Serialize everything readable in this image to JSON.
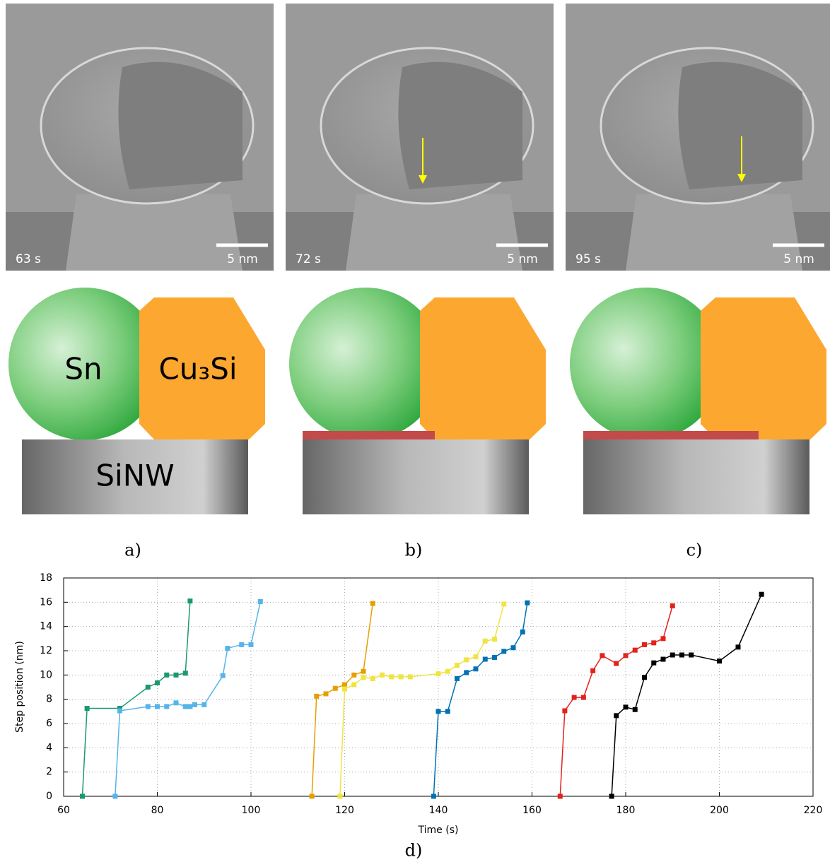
{
  "images": [
    {
      "time": "63 s",
      "scale": "5 nm"
    },
    {
      "time": "72 s",
      "scale": "5 nm"
    },
    {
      "time": "95 s",
      "scale": "5 nm"
    }
  ],
  "schematic": {
    "labels": [
      "Sn",
      "Cu₃Si",
      "SiNW"
    ]
  },
  "panel_labels": [
    "a)",
    "b)",
    "c)",
    "d)"
  ],
  "chart_data": {
    "type": "line",
    "xlabel": "Time (s)",
    "ylabel": "Step position (nm)",
    "xlim": [
      60,
      220
    ],
    "ylim": [
      0,
      18
    ],
    "xticks": [
      60,
      80,
      100,
      120,
      140,
      160,
      180,
      200,
      220
    ],
    "yticks": [
      0,
      2,
      4,
      6,
      8,
      10,
      12,
      14,
      16,
      18
    ],
    "grid": true,
    "series": [
      {
        "color": "#1a9870",
        "x": [
          64,
          65,
          72,
          78,
          80,
          82,
          84,
          86,
          87
        ],
        "values": [
          0,
          7.25,
          7.25,
          9.0,
          9.35,
          10.0,
          10.0,
          10.15,
          16.1
        ]
      },
      {
        "color": "#56b4e9",
        "x": [
          71,
          72,
          78,
          80,
          82,
          84,
          86,
          87,
          88,
          90,
          94,
          95,
          98,
          100,
          102
        ],
        "values": [
          0,
          7.05,
          7.4,
          7.4,
          7.4,
          7.7,
          7.4,
          7.4,
          7.55,
          7.55,
          9.95,
          12.2,
          12.5,
          12.5,
          16.05
        ]
      },
      {
        "color": "#e69f00",
        "x": [
          113,
          114,
          116,
          118,
          120,
          122,
          124,
          126
        ],
        "values": [
          0,
          8.25,
          8.45,
          8.9,
          9.2,
          10.0,
          10.3,
          15.9
        ]
      },
      {
        "color": "#f0e442",
        "x": [
          119,
          120,
          122,
          124,
          126,
          128,
          130,
          132,
          134,
          140,
          142,
          144,
          146,
          148,
          150,
          152,
          154
        ],
        "values": [
          0,
          8.85,
          9.2,
          9.8,
          9.7,
          10.0,
          9.85,
          9.85,
          9.85,
          10.1,
          10.3,
          10.8,
          11.25,
          11.5,
          12.8,
          12.95,
          15.85
        ]
      },
      {
        "color": "#0072b2",
        "x": [
          139,
          140,
          142,
          144,
          146,
          148,
          150,
          152,
          154,
          156,
          158,
          159
        ],
        "values": [
          0,
          7.0,
          7.0,
          9.7,
          10.2,
          10.5,
          11.3,
          11.45,
          11.95,
          12.25,
          13.55,
          15.95
        ]
      },
      {
        "color": "#e3221c",
        "x": [
          166,
          167,
          169,
          171,
          173,
          175,
          178,
          180,
          182,
          184,
          186,
          188,
          190
        ],
        "values": [
          0,
          7.05,
          8.15,
          8.15,
          10.35,
          11.6,
          10.95,
          11.6,
          12.05,
          12.5,
          12.65,
          13.0,
          15.7
        ]
      },
      {
        "color": "#000000",
        "x": [
          177,
          178,
          180,
          182,
          184,
          186,
          188,
          190,
          192,
          194,
          200,
          204,
          209
        ],
        "values": [
          0,
          6.65,
          7.35,
          7.15,
          9.8,
          11.0,
          11.3,
          11.65,
          11.65,
          11.65,
          11.15,
          12.3,
          16.65
        ]
      }
    ]
  }
}
